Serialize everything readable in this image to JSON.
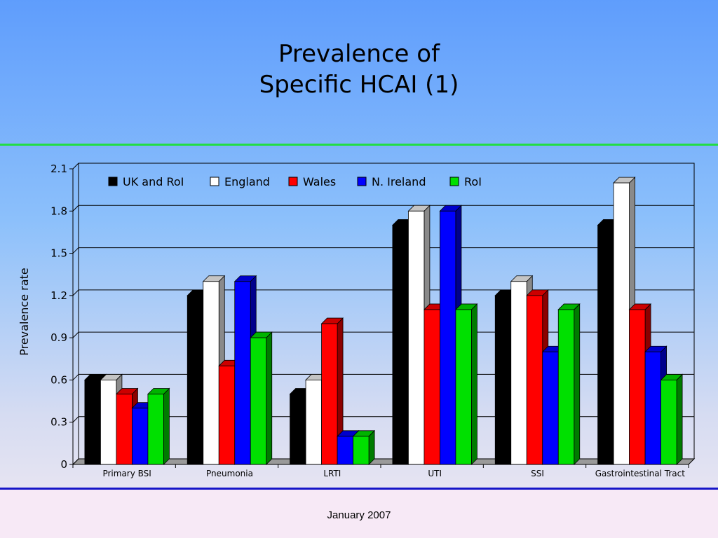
{
  "slide": {
    "title_line1": "Prevalence of",
    "title_line2": "Specific HCAI (1)",
    "footer": "January 2007"
  },
  "colors": {
    "background_top": "#5f9dfc",
    "divider_top": "#22dd44",
    "divider_bottom": "#1515c8",
    "footer_band": "#f7e9f6"
  },
  "chart_data": {
    "type": "bar",
    "style": "3d-clustered",
    "title": "",
    "xlabel": "",
    "ylabel": "Prevalence rate",
    "ylim": [
      0,
      2.1
    ],
    "yticks": [
      "0",
      "0.3",
      "0.6",
      "0.9",
      "1.2",
      "1.5",
      "1.8",
      "2.1"
    ],
    "grid": true,
    "legend_position": "top",
    "categories": [
      "Primary BSI",
      "Pneumonia",
      "LRTI",
      "UTI",
      "SSI",
      "Gastrointestinal Tract"
    ],
    "series": [
      {
        "name": "UK and RoI",
        "color": "#000000",
        "values": [
          0.6,
          1.2,
          0.5,
          1.7,
          1.2,
          1.7
        ]
      },
      {
        "name": "England",
        "color": "#ffffff",
        "values": [
          0.6,
          1.3,
          0.6,
          1.8,
          1.3,
          2.0
        ]
      },
      {
        "name": "Wales",
        "color": "#ff0000",
        "values": [
          0.5,
          0.7,
          1.0,
          1.1,
          1.2,
          1.1
        ]
      },
      {
        "name": "N. Ireland",
        "color": "#0000ff",
        "values": [
          0.4,
          1.3,
          0.2,
          1.8,
          0.8,
          0.8
        ]
      },
      {
        "name": "RoI",
        "color": "#00e000",
        "values": [
          0.5,
          0.9,
          0.2,
          1.1,
          1.1,
          0.6
        ]
      }
    ]
  }
}
